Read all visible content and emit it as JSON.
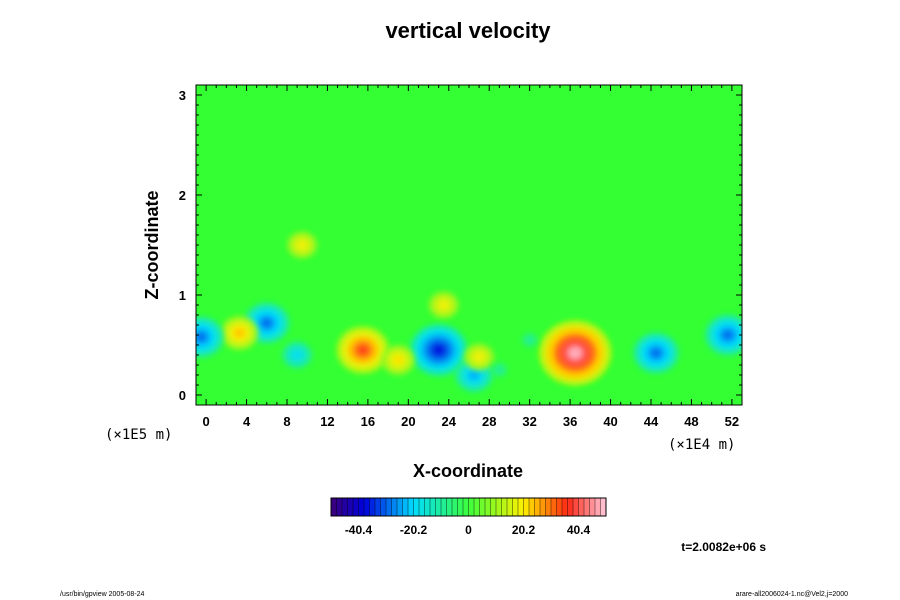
{
  "chart_data": {
    "type": "heatmap",
    "title": "vertical velocity",
    "xlabel": "X-coordinate",
    "ylabel": "Z-coordinate",
    "x_scale_note": "(×1E5 m)",
    "x_unit_note": "(×1E4 m)",
    "x_ticks": [
      "0",
      "4",
      "8",
      "12",
      "16",
      "20",
      "24",
      "28",
      "32",
      "36",
      "40",
      "44",
      "48",
      "52"
    ],
    "y_ticks": [
      "0",
      "1",
      "2",
      "3"
    ],
    "xlim": [
      -1,
      53
    ],
    "ylim": [
      -0.1,
      3.1
    ],
    "colorbar": {
      "ticks": [
        "-40.4",
        "-20.2",
        "0",
        "20.2",
        "40.4"
      ],
      "tick_values": [
        -40.4,
        -20.2,
        0,
        20.2,
        40.4
      ],
      "range": [
        -50.5,
        50.5
      ]
    },
    "features": [
      {
        "x": 15.5,
        "z": 0.45,
        "value": 35
      },
      {
        "x": 36.5,
        "z": 0.42,
        "value": 48
      },
      {
        "x": 23,
        "z": 0.45,
        "value": -38
      },
      {
        "x": 44.5,
        "z": 0.42,
        "value": -30
      },
      {
        "x": 6,
        "z": 0.72,
        "value": -30
      },
      {
        "x": 9,
        "z": 0.4,
        "value": -20
      },
      {
        "x": 3.3,
        "z": 0.62,
        "value": 25
      },
      {
        "x": 26.5,
        "z": 0.2,
        "value": -25
      },
      {
        "x": 27,
        "z": 0.38,
        "value": 20
      },
      {
        "x": 23.5,
        "z": 0.9,
        "value": 20
      },
      {
        "x": 19,
        "z": 0.35,
        "value": 22
      },
      {
        "x": 9.5,
        "z": 1.5,
        "value": 20
      },
      {
        "x": -0.5,
        "z": 0.58,
        "value": -30
      },
      {
        "x": 51.6,
        "z": 0.6,
        "value": -30
      },
      {
        "x": 29,
        "z": 0.25,
        "value": -10
      },
      {
        "x": 32,
        "z": 0.55,
        "value": -10
      }
    ],
    "grid": false,
    "time_label": "t=2.0082e+06 s"
  },
  "footer": {
    "left": "/usr/bin/gpview 2005-08-24",
    "right": "arare-all2006024-1.nc@Vel2,j=2000"
  }
}
